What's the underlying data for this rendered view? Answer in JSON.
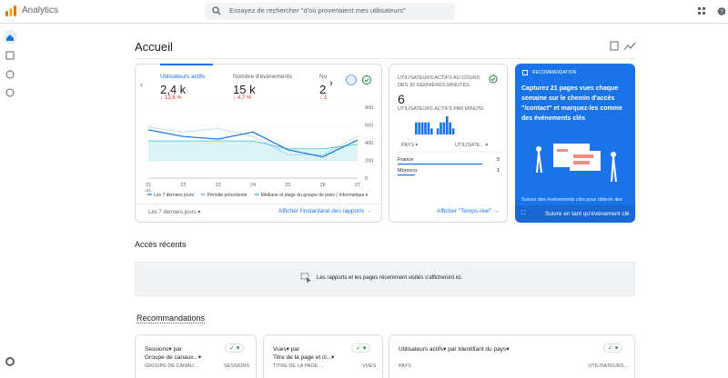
{
  "header": {
    "product": "Analytics",
    "search_placeholder": "Essayez de rechercher \"d'où provenaient mes utilisateurs\""
  },
  "page_title": "Accueil",
  "overview": {
    "metrics": [
      {
        "label": "Utilisateurs actifs",
        "value": "2,4 k",
        "change": "12,6 %"
      },
      {
        "label": "Nombre d'événements",
        "value": "15 k",
        "change": "4,7 %"
      },
      {
        "label": "No",
        "value": "2",
        "change": "1"
      }
    ],
    "chart": {
      "type": "line",
      "categories": [
        "21",
        "22",
        "23",
        "24",
        "25",
        "26",
        "27"
      ],
      "x_sublabel": "oct.",
      "series": [
        {
          "name": "Les 7 derniers jours",
          "color": "#1a73e8",
          "dashed": false,
          "values": [
            545,
            470,
            440,
            520,
            320,
            240,
            430
          ]
        },
        {
          "name": "Période précédente",
          "color": "#1a73e8",
          "dashed": true,
          "values": [
            575,
            520,
            560,
            470,
            265,
            265,
            470
          ]
        }
      ],
      "band": {
        "name": "Médiane et plage du groupe de pairs ( Informatique e",
        "color": "#12b5cb",
        "low": [
          190,
          190,
          190,
          190,
          190,
          190,
          190
        ],
        "high": [
          420,
          420,
          420,
          420,
          330,
          330,
          380
        ]
      },
      "ylim": [
        0,
        800
      ],
      "yticks": [
        0,
        200,
        400,
        600,
        800
      ]
    },
    "date_range": "Les 7 derniers jours",
    "link": "Afficher l'instantané des rapports"
  },
  "realtime": {
    "title": "UTILISATEURS ACTIFS AU COURS DES 30 DERNIÈRES MINUTES",
    "value": "6",
    "per_minute_label": "UTILISATEURS ACTIFS PAR MINUTE",
    "per_minute": [
      2,
      2,
      2,
      2,
      2,
      1,
      0,
      1,
      2,
      2,
      3,
      2,
      1,
      0
    ],
    "col1": "PAYS",
    "col2": "UTILISATE...",
    "rows": [
      {
        "country": "France",
        "users": 5
      },
      {
        "country": "Morocco",
        "users": 1
      }
    ],
    "link": "Afficher \"Temps réel\""
  },
  "recommendation": {
    "tag": "RECOMMANDATION",
    "text": "Capturez 21 pages vues chaque semaine sur le chemin d'accès \"/contact\" et marquez-les comme des événements clés",
    "footer": "Suivez des événements clés pour obtenir des",
    "action": "Suivre en tant qu'événement clé"
  },
  "recent": {
    "title": "Accès récents",
    "empty": "Les rapports et les pages récemment visités s'afficheront ici."
  },
  "recommendations": {
    "title": "Recommandations",
    "cards": [
      {
        "metric": "Sessions",
        "by": "par",
        "dimension": "Groupe de canaux...",
        "col1": "GROUPE DE CANAU...",
        "col2": "SESSIONS"
      },
      {
        "metric": "Vues",
        "by": "par",
        "dimension": "Titre de la page et cl...",
        "col1": "TITRE DE LA PAGE ...",
        "col2": "VUES"
      },
      {
        "metric": "Utilisateurs actifs",
        "by": "par",
        "dimension": "Identifiant du pays",
        "col1": "PAYS",
        "col2": "UTILISATEURS..."
      }
    ]
  }
}
